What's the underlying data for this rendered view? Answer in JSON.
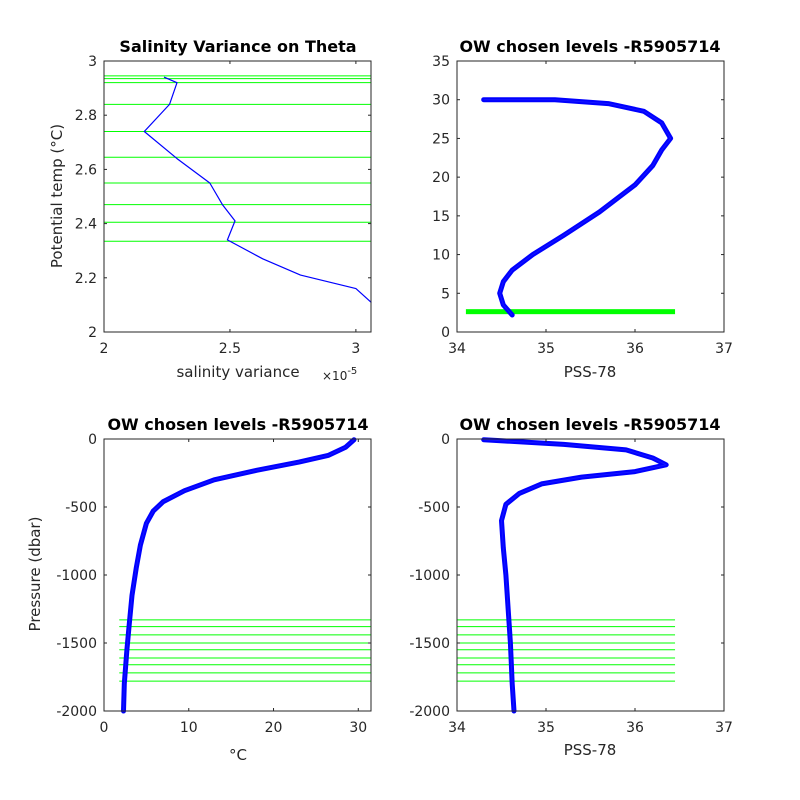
{
  "chart_data": [
    {
      "type": "line",
      "title": "Salinity Variance on Theta",
      "xlabel": "salinity variance",
      "x_exponent_label": "×10",
      "x_exponent_power": "-5",
      "ylabel": "Potential temp (°C)",
      "xlim": [
        2e-05,
        3.06e-05
      ],
      "ylim": [
        2,
        3
      ],
      "xticks": [
        2e-05,
        2.5e-05,
        3e-05
      ],
      "xticklabels": [
        "2",
        "2.5",
        "3"
      ],
      "yticks": [
        2,
        2.2,
        2.4,
        2.6,
        2.8,
        3
      ],
      "yticklabels": [
        "2",
        "2.2",
        "2.4",
        "2.6",
        "2.8",
        "3"
      ],
      "series": [
        {
          "color": "#0000ff",
          "x": [
            2.24e-05,
            2.29e-05,
            2.26e-05,
            2.16e-05,
            2.29e-05,
            2.42e-05,
            2.47e-05,
            2.52e-05,
            2.49e-05,
            2.63e-05,
            2.78e-05,
            3e-05,
            3.06e-05
          ],
          "y": [
            2.94,
            2.92,
            2.84,
            2.74,
            2.64,
            2.55,
            2.47,
            2.41,
            2.34,
            2.27,
            2.21,
            2.16,
            2.11
          ]
        }
      ],
      "hlines": {
        "color": "#00ff00",
        "values": [
          2.945,
          2.935,
          2.92,
          2.84,
          2.74,
          2.645,
          2.55,
          2.47,
          2.405,
          2.335
        ]
      }
    },
    {
      "type": "line",
      "title": "OW chosen levels -R5905714",
      "xlabel": "PSS-78",
      "ylabel": "",
      "xlim": [
        34,
        37
      ],
      "ylim": [
        0,
        35
      ],
      "xticks": [
        34,
        35,
        36,
        37
      ],
      "xticklabels": [
        "34",
        "35",
        "36",
        "37"
      ],
      "yticks": [
        0,
        5,
        10,
        15,
        20,
        25,
        30,
        35
      ],
      "yticklabels": [
        "0",
        "5",
        "10",
        "15",
        "20",
        "25",
        "30",
        "35"
      ],
      "series": [
        {
          "color": "#0000ff",
          "x": [
            34.62,
            34.52,
            34.48,
            34.52,
            34.62,
            34.85,
            35.2,
            35.6,
            36.0,
            36.2,
            36.3,
            36.4,
            36.3,
            36.1,
            35.7,
            35.1,
            34.3
          ],
          "y": [
            2.2,
            3.5,
            5.0,
            6.5,
            8.0,
            10.0,
            12.5,
            15.5,
            19.0,
            21.5,
            23.5,
            25.0,
            27.0,
            28.5,
            29.5,
            30.0,
            30.0
          ]
        }
      ],
      "hband": {
        "color": "#00ff00",
        "from": 2.35,
        "to": 2.95,
        "xfrom": 34.1,
        "xto": 36.45
      }
    },
    {
      "type": "line",
      "title": "OW chosen levels -R5905714",
      "xlabel": "°C",
      "ylabel": "Pressure (dbar)",
      "xlim": [
        0,
        31.5
      ],
      "ylim": [
        -2000,
        0
      ],
      "xticks": [
        0,
        10,
        20,
        30
      ],
      "xticklabels": [
        "0",
        "10",
        "20",
        "30"
      ],
      "yticks": [
        -2000,
        -1500,
        -1000,
        -500,
        0
      ],
      "yticklabels": [
        "-2000",
        "-1500",
        "-1000",
        "-500",
        "0"
      ],
      "series": [
        {
          "color": "#0000ff",
          "x": [
            29.5,
            28.5,
            26.5,
            23.0,
            18.0,
            13.0,
            9.5,
            7.0,
            5.8,
            5.0,
            4.3,
            3.8,
            3.3,
            3.0,
            2.7,
            2.4,
            2.3
          ],
          "y": [
            -5,
            -60,
            -120,
            -170,
            -230,
            -300,
            -380,
            -460,
            -530,
            -620,
            -780,
            -950,
            -1150,
            -1350,
            -1550,
            -1800,
            -2000
          ]
        }
      ],
      "hlines": {
        "color": "#00ff00",
        "values": [
          -1330,
          -1380,
          -1440,
          -1500,
          -1550,
          -1610,
          -1660,
          -1720,
          -1780
        ],
        "xfrom": 1.8,
        "xto": 31.5
      }
    },
    {
      "type": "line",
      "title": "OW chosen levels -R5905714",
      "xlabel": "PSS-78",
      "ylabel": "",
      "xlim": [
        34,
        37
      ],
      "ylim": [
        -2000,
        0
      ],
      "xticks": [
        34,
        35,
        36,
        37
      ],
      "xticklabels": [
        "34",
        "35",
        "36",
        "37"
      ],
      "yticks": [
        -2000,
        -1500,
        -1000,
        -500,
        0
      ],
      "yticklabels": [
        "-2000",
        "-1500",
        "-1000",
        "-500",
        "0"
      ],
      "series": [
        {
          "color": "#0000ff",
          "x": [
            34.3,
            35.2,
            35.9,
            36.2,
            36.35,
            36.0,
            35.4,
            34.95,
            34.7,
            34.55,
            34.5,
            34.52,
            34.55,
            34.58,
            34.6,
            34.62,
            34.64
          ],
          "y": [
            -5,
            -40,
            -80,
            -140,
            -190,
            -240,
            -280,
            -330,
            -400,
            -480,
            -600,
            -800,
            -1000,
            -1300,
            -1500,
            -1800,
            -2000
          ]
        }
      ],
      "hlines": {
        "color": "#00ff00",
        "values": [
          -1330,
          -1380,
          -1440,
          -1500,
          -1550,
          -1610,
          -1660,
          -1720,
          -1780
        ],
        "xfrom": 34.0,
        "xto": 36.45
      }
    }
  ]
}
